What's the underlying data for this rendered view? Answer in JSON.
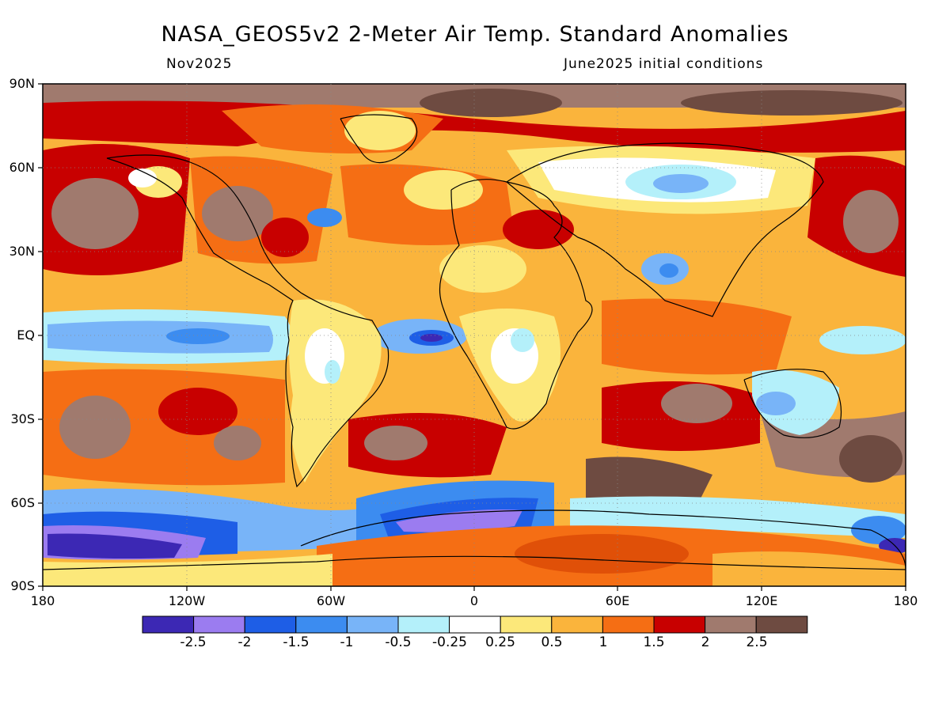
{
  "title": "NASA_GEOS5v2 2-Meter Air Temp. Standard Anomalies",
  "subtitle_left": "Nov2025",
  "subtitle_right": "June2025 initial conditions",
  "lat_labels": [
    "90N",
    "60N",
    "30N",
    "EQ",
    "30S",
    "60S",
    "90S"
  ],
  "lon_labels": [
    "180",
    "120W",
    "60W",
    "0",
    "60E",
    "120E",
    "180"
  ],
  "colorbar": {
    "colors": [
      "#3c28b4",
      "#9b7cf0",
      "#1e5ee6",
      "#3c8cf0",
      "#78b4f8",
      "#b4f0fa",
      "#ffffff",
      "#fce87a",
      "#fab43c",
      "#f56e14",
      "#c80000",
      "#a07a6e",
      "#6e4b41"
    ],
    "labels": [
      "-2.5",
      "-2",
      "-1.5",
      "-1",
      "-0.5",
      "-0.25",
      "0.25",
      "0.5",
      "1",
      "1.5",
      "2",
      "2.5"
    ]
  }
}
